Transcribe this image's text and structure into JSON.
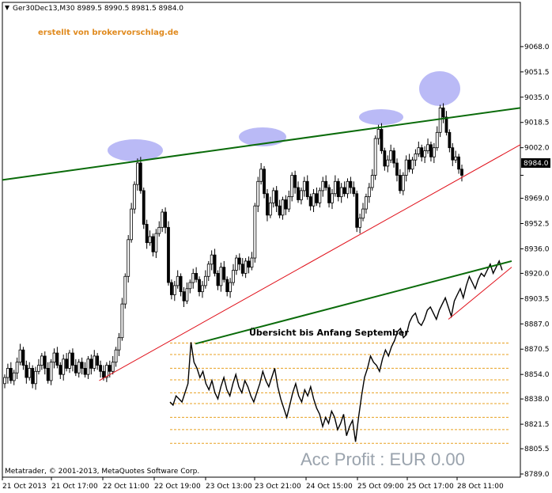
{
  "header": {
    "symbol_line": "Ger30Dec13,M30  8989.5 8990.5 8981.5 8984.0",
    "watermark": "erstellt von brokervorschlag.de"
  },
  "footer": {
    "copyright": "Metatrader, © 2001-2013, MetaQuotes Software Corp.",
    "acc_profit": "Acc Profit : EUR 0.00"
  },
  "annotation": "Übersicht bis Anfang September",
  "current_price_label": "8984.0",
  "colors": {
    "candle": "#000000",
    "trend_green": "#0a6b0a",
    "trend_red": "#e0101a",
    "ellipse": "#8c8cf0",
    "fib": "#e8a020"
  },
  "chart_data": {
    "type": "candlestick",
    "ylim": [
      8789.0,
      9085.0
    ],
    "y_ticks": [
      "9068.0",
      "9051.5",
      "9035.0",
      "9018.5",
      "9002.0",
      "8984.0",
      "8969.0",
      "8952.5",
      "8936.0",
      "8920.0",
      "8903.5",
      "8887.0",
      "8870.5",
      "8854.0",
      "8838.0",
      "8821.5",
      "8805.5",
      "8789.0"
    ],
    "x_ticks": [
      "21 Oct 2013",
      "21 Oct 17:00",
      "22 Oct 11:00",
      "22 Oct 19:00",
      "23 Oct 13:00",
      "23 Oct 21:00",
      "24 Oct 15:00",
      "25 Oct 09:00",
      "25 Oct 17:00",
      "28 Oct 11:00"
    ],
    "candles": [
      [
        8848,
        8852
      ],
      [
        8852,
        8858
      ],
      [
        8858,
        8850
      ],
      [
        8850,
        8855
      ],
      [
        8855,
        8862
      ],
      [
        8862,
        8870
      ],
      [
        8870,
        8860
      ],
      [
        8860,
        8852
      ],
      [
        8852,
        8858
      ],
      [
        8858,
        8848
      ],
      [
        8848,
        8856
      ],
      [
        8856,
        8860
      ],
      [
        8860,
        8866
      ],
      [
        8866,
        8858
      ],
      [
        8858,
        8850
      ],
      [
        8850,
        8862
      ],
      [
        8862,
        8868
      ],
      [
        8868,
        8860
      ],
      [
        8860,
        8854
      ],
      [
        8854,
        8864
      ],
      [
        8864,
        8858
      ],
      [
        8858,
        8868
      ],
      [
        8868,
        8860
      ],
      [
        8860,
        8855
      ],
      [
        8855,
        8862
      ],
      [
        8862,
        8858
      ],
      [
        8858,
        8854
      ],
      [
        8854,
        8864
      ],
      [
        8864,
        8858
      ],
      [
        8858,
        8866
      ],
      [
        8866,
        8860
      ],
      [
        8860,
        8856
      ],
      [
        8856,
        8852
      ],
      [
        8852,
        8860
      ],
      [
        8860,
        8856
      ],
      [
        8856,
        8862
      ],
      [
        8862,
        8870
      ],
      [
        8870,
        8878
      ],
      [
        8878,
        8900
      ],
      [
        8900,
        8918
      ],
      [
        8918,
        8942
      ],
      [
        8942,
        8962
      ],
      [
        8962,
        8978
      ],
      [
        8978,
        8992
      ],
      [
        8992,
        8974
      ],
      [
        8974,
        8952
      ],
      [
        8952,
        8940
      ],
      [
        8940,
        8944
      ],
      [
        8944,
        8934
      ],
      [
        8934,
        8946
      ],
      [
        8946,
        8950
      ],
      [
        8950,
        8960
      ],
      [
        8960,
        8950
      ],
      [
        8950,
        8914
      ],
      [
        8914,
        8906
      ],
      [
        8906,
        8912
      ],
      [
        8912,
        8918
      ],
      [
        8918,
        8908
      ],
      [
        8908,
        8902
      ],
      [
        8902,
        8910
      ],
      [
        8910,
        8914
      ],
      [
        8914,
        8920
      ],
      [
        8920,
        8916
      ],
      [
        8916,
        8908
      ],
      [
        8908,
        8912
      ],
      [
        8912,
        8918
      ],
      [
        8918,
        8926
      ],
      [
        8926,
        8932
      ],
      [
        8932,
        8920
      ],
      [
        8920,
        8912
      ],
      [
        8912,
        8924
      ],
      [
        8924,
        8916
      ],
      [
        8916,
        8908
      ],
      [
        8908,
        8914
      ],
      [
        8914,
        8922
      ],
      [
        8922,
        8930
      ],
      [
        8930,
        8926
      ],
      [
        8926,
        8920
      ],
      [
        8920,
        8928
      ],
      [
        8928,
        8924
      ],
      [
        8924,
        8930
      ],
      [
        8930,
        8964
      ],
      [
        8964,
        8980
      ],
      [
        8980,
        8988
      ],
      [
        8988,
        8972
      ],
      [
        8972,
        8958
      ],
      [
        8958,
        8966
      ],
      [
        8966,
        8974
      ],
      [
        8974,
        8964
      ],
      [
        8964,
        8958
      ],
      [
        8958,
        8968
      ],
      [
        8968,
        8962
      ],
      [
        8962,
        8970
      ],
      [
        8970,
        8984
      ],
      [
        8984,
        8976
      ],
      [
        8976,
        8968
      ],
      [
        8968,
        8974
      ],
      [
        8974,
        8980
      ],
      [
        8980,
        8970
      ],
      [
        8970,
        8964
      ],
      [
        8964,
        8972
      ],
      [
        8972,
        8966
      ],
      [
        8966,
        8974
      ],
      [
        8974,
        8980
      ],
      [
        8980,
        8976
      ],
      [
        8976,
        8966
      ],
      [
        8966,
        8972
      ],
      [
        8972,
        8980
      ],
      [
        8980,
        8970
      ],
      [
        8970,
        8976
      ],
      [
        8976,
        8972
      ],
      [
        8972,
        8980
      ],
      [
        8980,
        8976
      ],
      [
        8976,
        8972
      ],
      [
        8972,
        8950
      ],
      [
        8950,
        8956
      ],
      [
        8956,
        8962
      ],
      [
        8962,
        8970
      ],
      [
        8970,
        8976
      ],
      [
        8976,
        8984
      ],
      [
        8984,
        9008
      ],
      [
        9008,
        9014
      ],
      [
        9014,
        9000
      ],
      [
        9000,
        8990
      ],
      [
        8990,
        8994
      ],
      [
        8994,
        9000
      ],
      [
        9000,
        8992
      ],
      [
        8992,
        8984
      ],
      [
        8984,
        8974
      ],
      [
        8974,
        8984
      ],
      [
        8984,
        8994
      ],
      [
        8994,
        8988
      ],
      [
        8988,
        8994
      ],
      [
        8994,
        8998
      ],
      [
        8998,
        9002
      ],
      [
        9002,
        8996
      ],
      [
        8996,
        9000
      ],
      [
        9000,
        9004
      ],
      [
        9004,
        8996
      ],
      [
        8996,
        9002
      ],
      [
        9002,
        9012
      ],
      [
        9012,
        9028
      ],
      [
        9028,
        9022
      ],
      [
        9022,
        9012
      ],
      [
        9012,
        9002
      ],
      [
        9002,
        8994
      ],
      [
        8994,
        8996
      ],
      [
        8996,
        8988
      ],
      [
        8988,
        8984
      ]
    ],
    "trendlines": [
      {
        "x": [
          0.0,
          1.0
        ],
        "y": [
          8981.0,
          9028.0
        ],
        "color": "green"
      },
      {
        "x": [
          0.187,
          1.0
        ],
        "y": [
          8850.0,
          9004.0
        ],
        "color": "red"
      }
    ]
  },
  "inset": {
    "closes": [
      8836,
      8834,
      8840,
      8838,
      8836,
      8842,
      8848,
      8875,
      8862,
      8858,
      8852,
      8856,
      8848,
      8844,
      8850,
      8842,
      8838,
      8846,
      8852,
      8844,
      8840,
      8848,
      8854,
      8846,
      8842,
      8850,
      8846,
      8840,
      8836,
      8842,
      8848,
      8856,
      8850,
      8846,
      8852,
      8858,
      8846,
      8838,
      8832,
      8826,
      8834,
      8842,
      8848,
      8840,
      8836,
      8844,
      8840,
      8846,
      8838,
      8832,
      8828,
      8820,
      8826,
      8822,
      8830,
      8826,
      8818,
      8822,
      8828,
      8814,
      8820,
      8824,
      8810,
      8826,
      8840,
      8852,
      8858,
      8866,
      8862,
      8860,
      8856,
      8864,
      8870,
      8866,
      8872,
      8876,
      8882,
      8884,
      8878,
      8880,
      8888,
      8892,
      8894,
      8888,
      8886,
      8890,
      8896,
      8898,
      8894,
      8890,
      8896,
      8900,
      8904,
      8898,
      8892,
      8902,
      8906,
      8910,
      8904,
      8912,
      8918,
      8914,
      8910,
      8916,
      8920,
      8918,
      8922,
      8926,
      8920,
      8924,
      8928,
      8922
    ],
    "trendlines": [
      {
        "x": [
          0.0,
          1.0
        ],
        "y": [
          8874.0,
          8928.0
        ],
        "color": "green"
      },
      {
        "x": [
          0.8,
          1.0
        ],
        "y": [
          8890.0,
          8924.0
        ],
        "color": "red"
      }
    ],
    "fib_levels": [
      8874.5,
      8867.0,
      8858.0,
      8850.5,
      8842.0,
      8835.0,
      8826.0,
      8818.0,
      8809.0
    ]
  }
}
